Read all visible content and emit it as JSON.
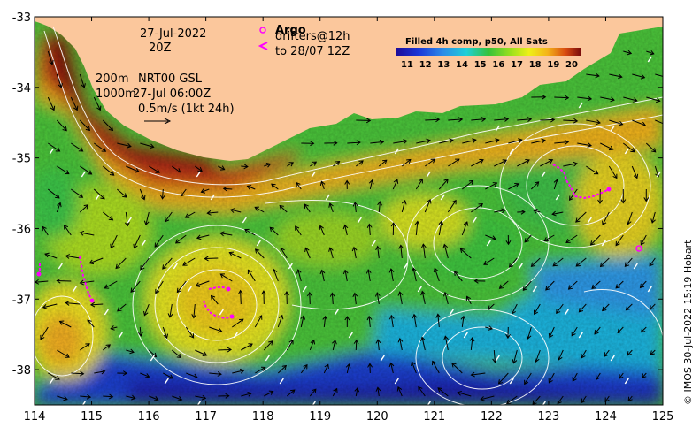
{
  "map": {
    "date_line": "27-Jul-2022",
    "time_line": "20Z",
    "contour_depths": "200m",
    "contour_depths_2": "1000m",
    "velocity_source": "NRT00 GSL",
    "velocity_time": "27-Jul 06:00Z",
    "vector_scale": "0.5m/s (1kt 24h)",
    "argo_label": "Argo",
    "drifters_label": "drifters@12h",
    "drifters_until": "to 28/07 12Z",
    "colorbar_title": "Filled 4h comp, p50, All Sats",
    "colorbar_ticks": [
      "11",
      "12",
      "13",
      "14",
      "15",
      "16",
      "17",
      "18",
      "19",
      "20"
    ],
    "credit": "© IMOS 30-Jul-2022 15:19 Hobart",
    "x_ticks": [
      "114",
      "115",
      "116",
      "117",
      "118",
      "119",
      "120",
      "121",
      "122",
      "123",
      "124",
      "125"
    ],
    "y_ticks": [
      "-33",
      "-34",
      "-35",
      "-36",
      "-37",
      "-38"
    ],
    "colors": {
      "land": "#fbc79c",
      "sst_ramp": [
        "#1c0c9a",
        "#1a36d8",
        "#2b8ae8",
        "#1fd0d8",
        "#35c23a",
        "#9be01c",
        "#eef018",
        "#f4b418",
        "#d84a10",
        "#7a0c0c"
      ],
      "drifter": "#ff00ff"
    }
  }
}
